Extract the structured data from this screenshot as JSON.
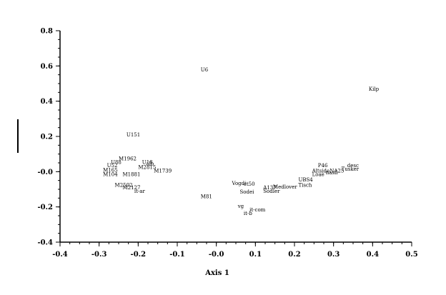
{
  "chart_data": {
    "type": "scatter",
    "title": "",
    "xlabel": "Axis 1",
    "ylabel": "",
    "xlim": [
      -0.4,
      0.5
    ],
    "ylim": [
      -0.4,
      0.8
    ],
    "x_ticks": [
      {
        "value": -0.4,
        "label": "-0.4"
      },
      {
        "value": -0.3,
        "label": "-0.3"
      },
      {
        "value": -0.2,
        "label": "-0.2"
      },
      {
        "value": -0.1,
        "label": "-0.1"
      },
      {
        "value": 0.0,
        "label": "-0.0"
      },
      {
        "value": 0.1,
        "label": "0.1"
      },
      {
        "value": 0.2,
        "label": "0.2"
      },
      {
        "value": 0.3,
        "label": "0.3"
      },
      {
        "value": 0.4,
        "label": "0.4"
      },
      {
        "value": 0.5,
        "label": "0.5"
      }
    ],
    "y_ticks": [
      {
        "value": 0.8,
        "label": "0.8"
      },
      {
        "value": 0.6,
        "label": "0.6"
      },
      {
        "value": 0.4,
        "label": "0.4"
      },
      {
        "value": 0.2,
        "label": "0.2"
      },
      {
        "value": 0.0,
        "label": "-0.0"
      },
      {
        "value": -0.2,
        "label": "-0.2"
      },
      {
        "value": -0.4,
        "label": "-0.4"
      }
    ],
    "grid": false,
    "points": [
      {
        "label": "U6",
        "x": -0.04,
        "y": 0.58
      },
      {
        "label": "Kilp",
        "x": 0.39,
        "y": 0.47
      },
      {
        "label": "U151",
        "x": -0.23,
        "y": 0.21
      },
      {
        "label": "M1962",
        "x": -0.25,
        "y": 0.075
      },
      {
        "label": "U88",
        "x": -0.27,
        "y": 0.055
      },
      {
        "label": "U52",
        "x": -0.28,
        "y": 0.035
      },
      {
        "label": "M165",
        "x": -0.29,
        "y": 0.01
      },
      {
        "label": "M104",
        "x": -0.29,
        "y": -0.015
      },
      {
        "label": "M1881",
        "x": -0.24,
        "y": -0.015
      },
      {
        "label": "U18",
        "x": -0.19,
        "y": 0.055
      },
      {
        "label": "alb",
        "x": -0.18,
        "y": 0.045
      },
      {
        "label": "M2815",
        "x": -0.2,
        "y": 0.025
      },
      {
        "label": "M1739",
        "x": -0.16,
        "y": 0.005
      },
      {
        "label": "M2502",
        "x": -0.26,
        "y": -0.075
      },
      {
        "label": "M2127",
        "x": -0.24,
        "y": -0.09
      },
      {
        "label": "it-ar",
        "x": -0.21,
        "y": -0.11
      },
      {
        "label": "M81",
        "x": -0.04,
        "y": -0.14
      },
      {
        "label": "Vogdi",
        "x": 0.04,
        "y": -0.065
      },
      {
        "label": "ct50",
        "x": 0.07,
        "y": -0.07
      },
      {
        "label": "Sodei",
        "x": 0.06,
        "y": -0.115
      },
      {
        "label": "Sodler",
        "x": 0.12,
        "y": -0.11
      },
      {
        "label": "A137",
        "x": 0.12,
        "y": -0.09
      },
      {
        "label": "Medlover",
        "x": 0.145,
        "y": -0.085
      },
      {
        "label": "vg",
        "x": 0.055,
        "y": -0.195
      },
      {
        "label": "it-com",
        "x": 0.085,
        "y": -0.215
      },
      {
        "label": "it-b",
        "x": 0.07,
        "y": -0.235
      },
      {
        "label": "UBS4",
        "x": 0.21,
        "y": -0.045
      },
      {
        "label": "Tisch",
        "x": 0.21,
        "y": -0.075
      },
      {
        "label": "P46",
        "x": 0.26,
        "y": 0.035
      },
      {
        "label": "Altside",
        "x": 0.245,
        "y": 0.005
      },
      {
        "label": "Loae",
        "x": 0.245,
        "y": -0.015
      },
      {
        "label": "NA25",
        "x": 0.29,
        "y": 0.005
      },
      {
        "label": "nasil",
        "x": 0.28,
        "y": -0.005
      },
      {
        "label": "desc",
        "x": 0.335,
        "y": 0.035
      },
      {
        "label": "Tusker",
        "x": 0.32,
        "y": 0.015
      }
    ]
  }
}
